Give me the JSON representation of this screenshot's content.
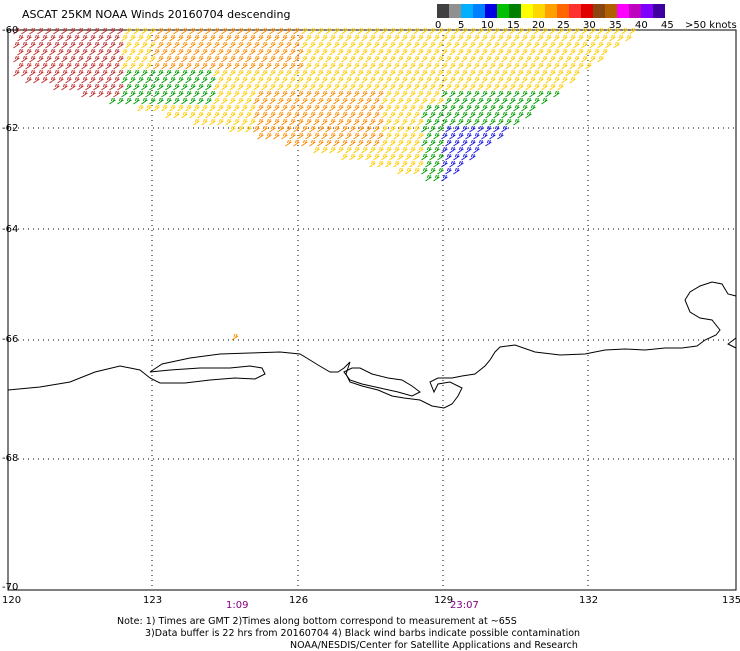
{
  "title": "ASCAT 25KM NOAA Winds 20160704 descending",
  "legend": {
    "labels": [
      "0",
      "5",
      "10",
      "15",
      "20",
      "25",
      "30",
      "35",
      "40",
      "45",
      ">50 knots"
    ],
    "colors": [
      "#404040",
      "#909090",
      "#00b0ff",
      "#0080ff",
      "#0000e0",
      "#00c000",
      "#008000",
      "#ffff00",
      "#ffd700",
      "#ffa000",
      "#ff6600",
      "#ff3030",
      "#e00000",
      "#8b4513",
      "#b06000",
      "#ff00ff",
      "#c000c0",
      "#8000ff",
      "#4000a0"
    ]
  },
  "axes": {
    "lat_labels": [
      "-60",
      "-62",
      "-64",
      "-66",
      "-68",
      "-70"
    ],
    "lon_labels": [
      "120",
      "123",
      "126",
      "129",
      "132",
      "135"
    ]
  },
  "times": [
    "1:09",
    "23:07"
  ],
  "notes": {
    "line1": "Note: 1) Times are GMT 2)Times along bottom correspond to measurement at ~65S",
    "line2": "3)Data buffer is 22 hrs from 20160704 4) Black wind barbs indicate possible contamination",
    "line3": "NOAA/NESDIS/Center for Satellite Applications and Research"
  }
}
